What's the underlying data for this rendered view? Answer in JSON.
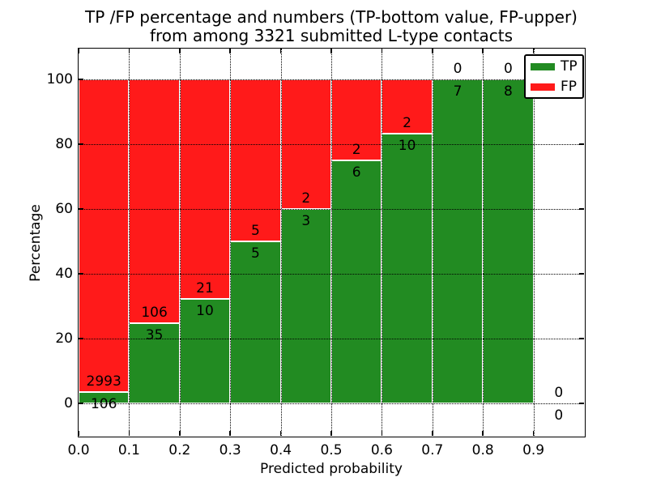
{
  "title": {
    "line1": "TP /FP percentage and numbers (TP-bottom value, FP-upper)",
    "line2": "from among 3321 submitted L-type contacts"
  },
  "chart_data": {
    "type": "bar",
    "stacked": true,
    "title": "TP /FP percentage and numbers (TP-bottom value, FP-upper) from among 3321 submitted L-type contacts",
    "xlabel": "Predicted probability",
    "ylabel": "Percentage",
    "xlim": [
      0.0,
      1.0
    ],
    "ylim": [
      -10,
      110
    ],
    "grid": true,
    "x_ticks": [
      "0.0",
      "0.1",
      "0.2",
      "0.3",
      "0.4",
      "0.5",
      "0.6",
      "0.7",
      "0.8",
      "0.9"
    ],
    "y_ticks": [
      "0",
      "20",
      "40",
      "60",
      "80",
      "100"
    ],
    "legend": {
      "position": "upper right"
    },
    "series": [
      {
        "name": "TP",
        "color": "#228B22",
        "stack_position": "bottom"
      },
      {
        "name": "FP",
        "color": "#FF1A1A",
        "stack_position": "top"
      }
    ],
    "bins": [
      {
        "x_start": 0.0,
        "x_end": 0.1,
        "tp_count": 106,
        "fp_count": 2993,
        "tp_pct": 3.42,
        "fp_pct": 96.58
      },
      {
        "x_start": 0.1,
        "x_end": 0.2,
        "tp_count": 35,
        "fp_count": 106,
        "tp_pct": 24.82,
        "fp_pct": 75.18
      },
      {
        "x_start": 0.2,
        "x_end": 0.3,
        "tp_count": 10,
        "fp_count": 21,
        "tp_pct": 32.26,
        "fp_pct": 67.74
      },
      {
        "x_start": 0.3,
        "x_end": 0.4,
        "tp_count": 5,
        "fp_count": 5,
        "tp_pct": 50.0,
        "fp_pct": 50.0
      },
      {
        "x_start": 0.4,
        "x_end": 0.5,
        "tp_count": 3,
        "fp_count": 2,
        "tp_pct": 60.0,
        "fp_pct": 40.0
      },
      {
        "x_start": 0.5,
        "x_end": 0.6,
        "tp_count": 6,
        "fp_count": 2,
        "tp_pct": 75.0,
        "fp_pct": 25.0
      },
      {
        "x_start": 0.6,
        "x_end": 0.7,
        "tp_count": 10,
        "fp_count": 2,
        "tp_pct": 83.33,
        "fp_pct": 16.67
      },
      {
        "x_start": 0.7,
        "x_end": 0.8,
        "tp_count": 7,
        "fp_count": 0,
        "tp_pct": 100.0,
        "fp_pct": 0.0
      },
      {
        "x_start": 0.8,
        "x_end": 0.9,
        "tp_count": 8,
        "fp_count": 0,
        "tp_pct": 100.0,
        "fp_pct": 0.0
      },
      {
        "x_start": 0.9,
        "x_end": 1.0,
        "tp_count": 0,
        "fp_count": 0,
        "tp_pct": 0.0,
        "fp_pct": 0.0
      }
    ],
    "total_contacts": 3321
  }
}
